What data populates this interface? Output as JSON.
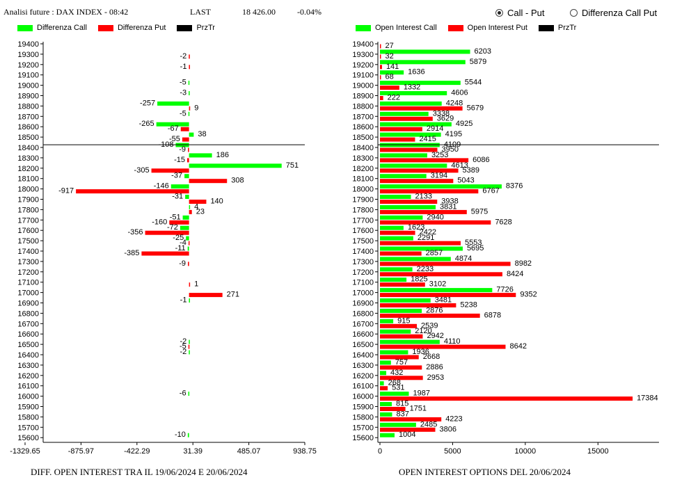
{
  "header": {
    "app_title": "Analisi future : DAX INDEX - 08:42",
    "last_label": "LAST",
    "last_value": "18 426.00",
    "change": "-0.04%"
  },
  "radio": {
    "option1": "Call - Put",
    "option2": "Differenza Call Put",
    "selected": "option1"
  },
  "colors": {
    "call": "#00ff00",
    "put": "#ff0000",
    "prztr": "#000000"
  },
  "left_legend": [
    "Differenza Call",
    "Differenza Put",
    "PrzTr"
  ],
  "right_legend": [
    "Open Interest Call",
    "Open Interest Put",
    "PrzTr"
  ],
  "chart_data": [
    {
      "type": "bar",
      "orientation": "horizontal",
      "title": "DIFF. OPEN INTEREST TRA IL 19/06/2024 E 20/06/2024",
      "categories": [
        19400,
        19300,
        19200,
        19100,
        19000,
        18900,
        18800,
        18700,
        18600,
        18500,
        18400,
        18300,
        18200,
        18100,
        18000,
        17900,
        17800,
        17700,
        17600,
        17500,
        17400,
        17300,
        17200,
        17100,
        17000,
        16900,
        16800,
        16700,
        16600,
        16500,
        16400,
        16300,
        16200,
        16100,
        16000,
        15900,
        15800,
        15700,
        15600
      ],
      "series": [
        {
          "name": "Differenza Call",
          "values": [
            null,
            null,
            null,
            null,
            -5,
            -3,
            -257,
            -5,
            -265,
            38,
            -108,
            186,
            751,
            -37,
            -146,
            -31,
            4,
            -51,
            -72,
            -25,
            -11,
            null,
            null,
            null,
            null,
            -1,
            null,
            null,
            null,
            -2,
            -2,
            null,
            null,
            null,
            -6,
            null,
            null,
            null,
            -10
          ]
        },
        {
          "name": "Differenza Put",
          "values": [
            null,
            -2,
            -1,
            null,
            null,
            null,
            9,
            null,
            -67,
            -55,
            -9,
            -15,
            -305,
            308,
            -917,
            140,
            23,
            -160,
            -356,
            -4,
            -385,
            -9,
            null,
            1,
            271,
            null,
            null,
            null,
            null,
            -5,
            null,
            null,
            null,
            null,
            null,
            null,
            null,
            null,
            null
          ]
        }
      ],
      "prztr": 18426,
      "xticks": [
        "-1329.65",
        "-875.97",
        "-422.29",
        "31.39",
        "485.07",
        "938.75"
      ],
      "xlim": [
        -1329.65,
        938.75
      ]
    },
    {
      "type": "bar",
      "orientation": "horizontal",
      "title": "OPEN INTEREST OPTIONS DEL 20/06/2024",
      "categories": [
        19400,
        19300,
        19200,
        19100,
        19000,
        18900,
        18800,
        18700,
        18600,
        18500,
        18400,
        18300,
        18200,
        18100,
        18000,
        17900,
        17800,
        17700,
        17600,
        17500,
        17400,
        17300,
        17200,
        17100,
        17000,
        16900,
        16800,
        16700,
        16600,
        16500,
        16400,
        16300,
        16200,
        16100,
        16000,
        15900,
        15800,
        15700,
        15600
      ],
      "series": [
        {
          "name": "Open Interest Call",
          "values": [
            null,
            6203,
            5879,
            1636,
            5544,
            4606,
            4248,
            3338,
            4925,
            4195,
            4109,
            3253,
            4613,
            3194,
            8376,
            2133,
            3831,
            2940,
            1623,
            2291,
            5695,
            4874,
            2233,
            1825,
            7726,
            3481,
            2876,
            915,
            2120,
            4110,
            1936,
            757,
            432,
            268,
            1987,
            815,
            837,
            2485,
            1004
          ]
        },
        {
          "name": "Open Interest Put",
          "values": [
            27,
            32,
            141,
            68,
            1332,
            222,
            5679,
            3629,
            2914,
            2415,
            3950,
            6086,
            5389,
            5043,
            6767,
            3938,
            5975,
            7628,
            2422,
            5553,
            2857,
            8982,
            8424,
            3102,
            9352,
            5238,
            6878,
            2539,
            2942,
            8642,
            2668,
            2886,
            2953,
            531,
            17384,
            1751,
            4223,
            3806,
            null
          ]
        }
      ],
      "prztr": 18426,
      "xticks": [
        "0",
        "5000",
        "10000",
        "15000"
      ],
      "xlim": [
        0,
        19200
      ]
    }
  ]
}
